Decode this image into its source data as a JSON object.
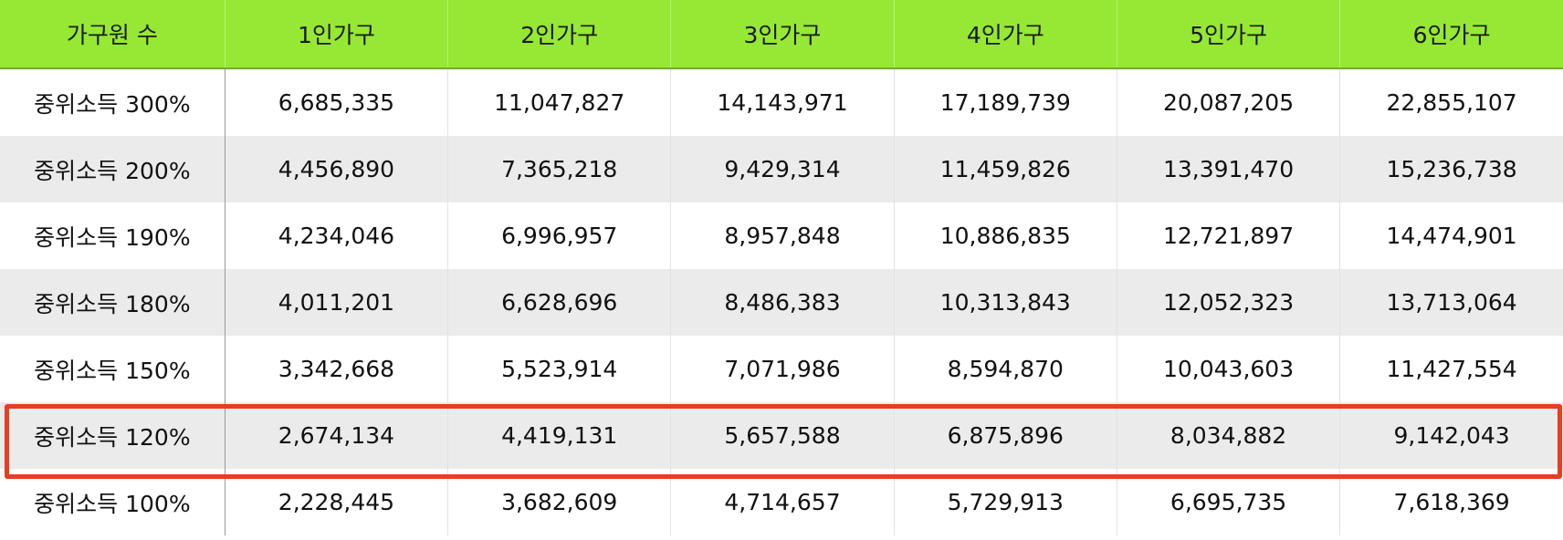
{
  "table": {
    "headers": [
      "가구원 수",
      "1인가구",
      "2인가구",
      "3인가구",
      "4인가구",
      "5인가구",
      "6인가구"
    ],
    "rows": [
      [
        "중위소득 300%",
        "6,685,335",
        "11,047,827",
        "14,143,971",
        "17,189,739",
        "20,087,205",
        "22,855,107"
      ],
      [
        "중위소득 200%",
        "4,456,890",
        "7,365,218",
        "9,429,314",
        "11,459,826",
        "13,391,470",
        "15,236,738"
      ],
      [
        "중위소득 190%",
        "4,234,046",
        "6,996,957",
        "8,957,848",
        "10,886,835",
        "12,721,897",
        "14,474,901"
      ],
      [
        "중위소득 180%",
        "4,011,201",
        "6,628,696",
        "8,486,383",
        "10,313,843",
        "12,052,323",
        "13,713,064"
      ],
      [
        "중위소득 150%",
        "3,342,668",
        "5,523,914",
        "7,071,986",
        "8,594,870",
        "10,043,603",
        "11,427,554"
      ],
      [
        "중위소득 120%",
        "2,674,134",
        "4,419,131",
        "5,657,588",
        "6,875,896",
        "8,034,882",
        "9,142,043"
      ],
      [
        "중위소득 100%",
        "2,228,445",
        "3,682,609",
        "4,714,657",
        "5,729,913",
        "6,695,735",
        "7,618,369"
      ]
    ],
    "highlighted_row": 5
  },
  "colors": {
    "header_bg": "#96e834",
    "stripe_bg": "#ebebeb",
    "highlight_border": "#e63e22"
  }
}
